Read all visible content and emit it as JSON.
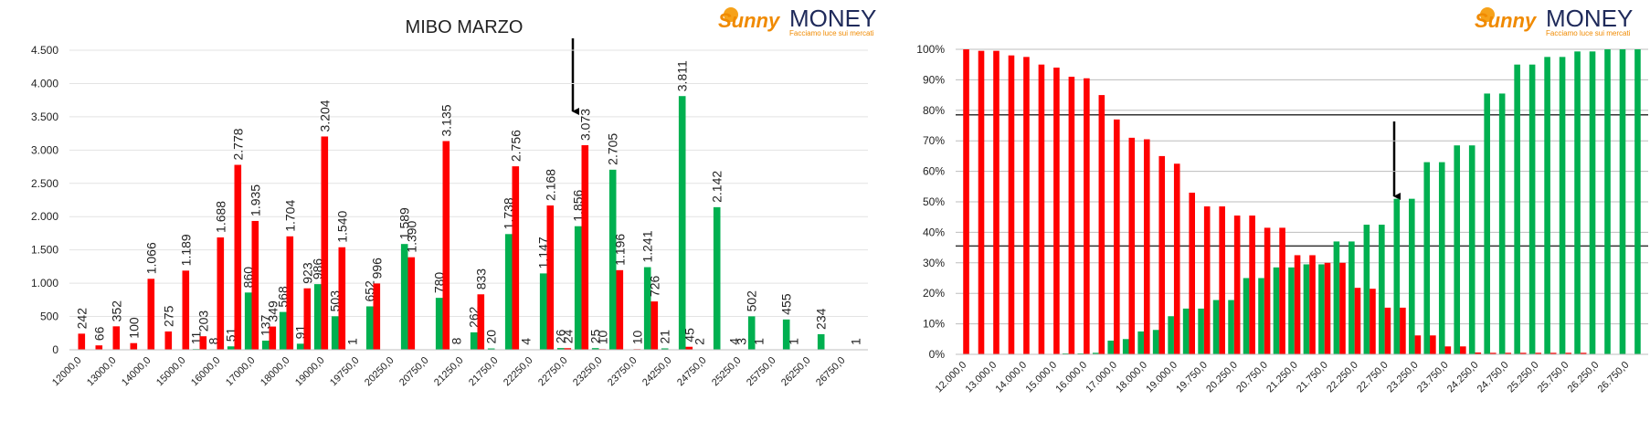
{
  "logo": {
    "brand_1": "Sunny",
    "brand_2": "MONEY",
    "tagline": "Facciamo luce sui mercati"
  },
  "chart_data": [
    {
      "type": "bar",
      "title": "MIBO MARZO",
      "categories": [
        "12000,0",
        null,
        "13000,0",
        null,
        "14000,0",
        null,
        "15000,0",
        null,
        "16000,0",
        null,
        "17000,0",
        null,
        "18000,0",
        null,
        "19000,0",
        null,
        "19750,0",
        null,
        "20250,0",
        null,
        "20750,0",
        null,
        "21250,0",
        null,
        "21750,0",
        null,
        "22250,0",
        null,
        "22750,0",
        null,
        "23250,0",
        null,
        "23750,0",
        null,
        "24250,0",
        null,
        "24750,0",
        null,
        "25250,0",
        null,
        "25750,0",
        null,
        "26250,0",
        null,
        "26750,0",
        null
      ],
      "series": [
        {
          "color": "#00b050",
          "values": [
            null,
            null,
            null,
            null,
            null,
            null,
            null,
            11,
            8,
            51,
            860,
            137,
            568,
            91,
            986,
            503,
            1,
            652,
            null,
            1589,
            null,
            780,
            8,
            262,
            20,
            1738,
            4,
            1147,
            26,
            1856,
            25,
            2705,
            null,
            1241,
            21,
            3811,
            2,
            2142,
            4,
            502,
            null,
            455,
            null,
            234,
            null,
            1
          ],
          "value_labels": [
            null,
            null,
            null,
            null,
            null,
            null,
            null,
            "11",
            "8",
            "51",
            "860",
            "137",
            "568",
            "91",
            "986",
            "503",
            "1",
            "652",
            null,
            "1.589",
            null,
            "780",
            "8",
            "262",
            "20",
            "1.738",
            "4",
            "1.147",
            "26",
            "1.856",
            "25",
            "2.705",
            null,
            "1.241",
            "21",
            "3.811",
            "2",
            "2.142",
            "4",
            "502",
            null,
            "455",
            null,
            "234",
            null,
            "1"
          ]
        },
        {
          "color": "#ff0000",
          "values": [
            242,
            66,
            352,
            100,
            1066,
            275,
            1189,
            203,
            1688,
            2778,
            1935,
            349,
            1704,
            923,
            3204,
            1540,
            null,
            996,
            null,
            1390,
            null,
            3135,
            null,
            833,
            null,
            2756,
            null,
            2168,
            24,
            3073,
            10,
            1196,
            10,
            726,
            null,
            45,
            null,
            null,
            3,
            1,
            null,
            1,
            null,
            null,
            null,
            null
          ],
          "value_labels": [
            "242",
            "66",
            "352",
            "100",
            "1.066",
            "275",
            "1.189",
            "203",
            "1.688",
            "2.778",
            "1.935",
            "349",
            "1.704",
            "923",
            "3.204",
            "1.540",
            null,
            "996",
            null,
            "1.390",
            null,
            "3.135",
            null,
            "833",
            null,
            "2.756",
            null,
            "2.168",
            "24",
            "3.073",
            "10",
            "1.196",
            "10",
            "726",
            null,
            "45",
            null,
            null,
            "3",
            "1",
            null,
            "1",
            null,
            null,
            null,
            null
          ]
        }
      ],
      "ylim": [
        0,
        4500
      ],
      "yticks": [
        0,
        {
          "value": 500,
          "label": "500"
        },
        {
          "value": 1000,
          "label": "1.000"
        },
        {
          "value": 1500,
          "label": "1.500"
        },
        {
          "value": 2000,
          "label": "2.000"
        },
        {
          "value": 2500,
          "label": "2.500"
        },
        {
          "value": 3000,
          "label": "3.000"
        },
        {
          "value": 3500,
          "label": "3.500"
        },
        {
          "value": 4000,
          "label": "4.000"
        },
        {
          "value": 4500,
          "label": "4.500"
        }
      ],
      "grid": true
    },
    {
      "type": "bar",
      "categories": [
        "12.000,0",
        null,
        "13.000,0",
        null,
        "14.000,0",
        null,
        "15.000,0",
        null,
        "16.000,0",
        null,
        "17.000,0",
        null,
        "18.000,0",
        null,
        "19.000,0",
        null,
        "19.750,0",
        null,
        "20.250,0",
        null,
        "20.750,0",
        null,
        "21.250,0",
        null,
        "21.750,0",
        null,
        "22.250,0",
        null,
        "22.750,0",
        null,
        "23.250,0",
        null,
        "23.750,0",
        null,
        "24.250,0",
        null,
        "24.750,0",
        null,
        "25.250,0",
        null,
        "25.750,0",
        null,
        "26.250,0",
        null,
        "26.750,0",
        null
      ],
      "series": [
        {
          "color": "#00b050",
          "values": [
            0,
            0,
            0,
            0,
            0,
            0,
            0,
            0.3,
            0.3,
            0.5,
            4.5,
            5,
            7.5,
            8,
            12.5,
            15,
            15,
            17.8,
            17.8,
            25,
            25,
            28.5,
            28.5,
            29.5,
            29.5,
            37,
            37,
            42.5,
            42.5,
            51,
            51,
            63,
            63,
            68.5,
            68.5,
            85.5,
            85.5,
            95,
            95,
            97.5,
            97.5,
            99.3,
            99.3,
            100,
            100,
            100
          ]
        },
        {
          "color": "#ff0000",
          "values": [
            100,
            99.5,
            99.5,
            98,
            97.5,
            95,
            94,
            91,
            90.5,
            85,
            77,
            71,
            70.5,
            65,
            62.5,
            53,
            48.5,
            48.5,
            45.5,
            45.5,
            41.5,
            41.5,
            32.5,
            32.5,
            30,
            30,
            21.8,
            21.5,
            15.3,
            15.3,
            6.2,
            6.2,
            2.6,
            2.6,
            0.6,
            0.5,
            0.5,
            0.5,
            0.5,
            0.5,
            0.5,
            0.5,
            0,
            0,
            0,
            0
          ]
        }
      ],
      "ylim": [
        0,
        100
      ],
      "yticks": [
        {
          "value": 0,
          "label": "0%"
        },
        {
          "value": 10,
          "label": "10%"
        },
        {
          "value": 20,
          "label": "20%"
        },
        {
          "value": 30,
          "label": "30%"
        },
        {
          "value": 40,
          "label": "40%"
        },
        {
          "value": 50,
          "label": "50%"
        },
        {
          "value": 60,
          "label": "60%"
        },
        {
          "value": 70,
          "label": "70%"
        },
        {
          "value": 80,
          "label": "80%"
        },
        {
          "value": 90,
          "label": "90%"
        },
        {
          "value": 100,
          "label": "100%"
        }
      ],
      "hlines": [
        78.5,
        35.5
      ],
      "grid": true
    }
  ]
}
